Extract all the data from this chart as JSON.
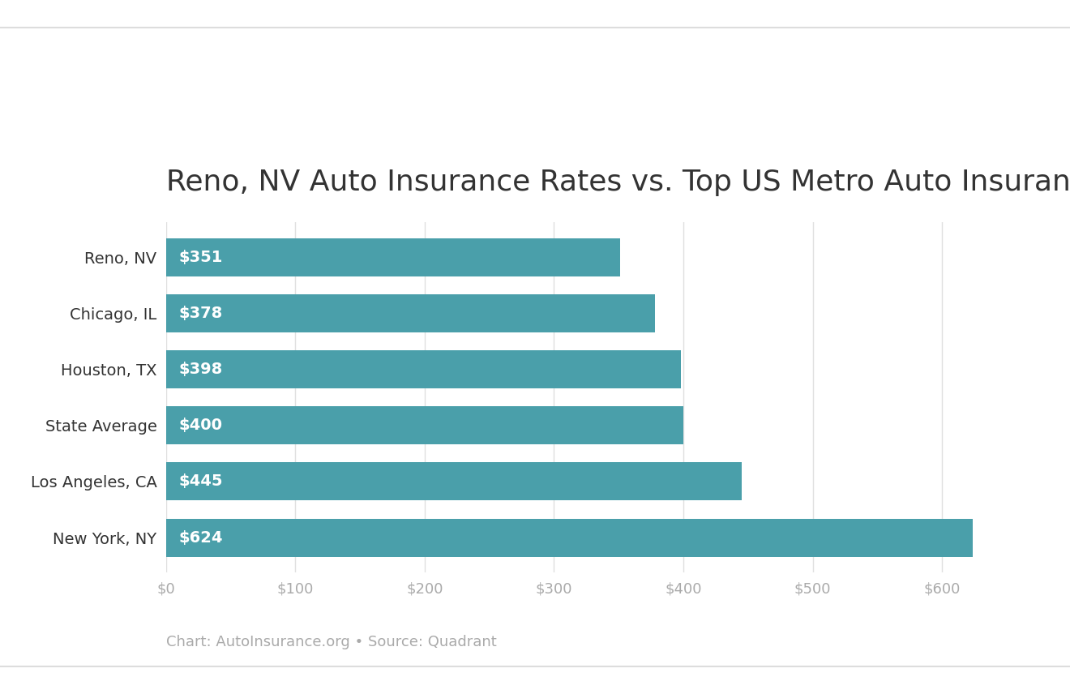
{
  "title": "Reno, NV Auto Insurance Rates vs. Top US Metro Auto Insurance Rates",
  "categories": [
    "Reno, NV",
    "Chicago, IL",
    "Houston, TX",
    "State Average",
    "Los Angeles, CA",
    "New York, NY"
  ],
  "values": [
    351,
    378,
    398,
    400,
    445,
    624
  ],
  "bar_color": "#4a9faa",
  "label_color": "#ffffff",
  "title_fontsize": 26,
  "label_fontsize": 14,
  "tick_fontsize": 13,
  "ytick_fontsize": 14,
  "caption": "Chart: AutoInsurance.org • Source: Quadrant",
  "caption_fontsize": 13,
  "caption_color": "#aaaaaa",
  "background_color": "#ffffff",
  "xlim": [
    0,
    670
  ],
  "xtick_values": [
    0,
    100,
    200,
    300,
    400,
    500,
    600
  ],
  "xtick_labels": [
    "$0",
    "$100",
    "$200",
    "$300",
    "$400",
    "$500",
    "$600"
  ],
  "grid_color": "#e0e0e0",
  "bar_height": 0.68,
  "separator_color": "#dddddd",
  "title_color": "#333333",
  "ytick_color": "#333333",
  "xtick_color": "#aaaaaa"
}
